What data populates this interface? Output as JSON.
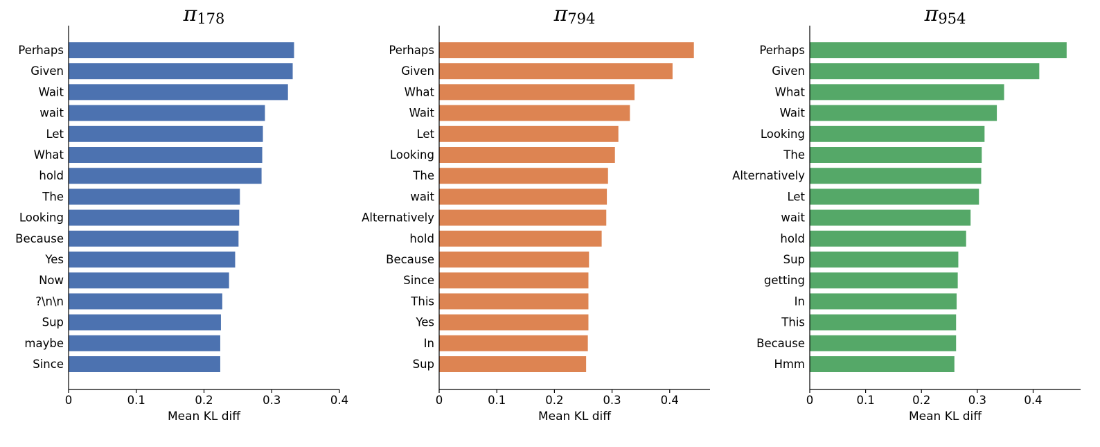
{
  "chart_data": [
    {
      "type": "bar",
      "orientation": "horizontal",
      "title": "π178",
      "title_symbol": "π",
      "title_subscript": "178",
      "xlabel": "Mean KL diff",
      "xlim": [
        0,
        0.4
      ],
      "xticks": [
        "0",
        "0.1",
        "0.2",
        "0.3",
        "0.4"
      ],
      "xtick_values": [
        0,
        0.1,
        0.2,
        0.3,
        0.4
      ],
      "color": "#4c72b0",
      "grid": false,
      "categories": [
        "Perhaps",
        "Given",
        "Wait",
        "wait",
        "Let",
        "What",
        "hold",
        "The",
        "Looking",
        "Because",
        "Yes",
        "Now",
        "?\\n\\n",
        "Sup",
        "maybe",
        "Since"
      ],
      "values": [
        0.333,
        0.331,
        0.324,
        0.29,
        0.287,
        0.286,
        0.285,
        0.253,
        0.252,
        0.251,
        0.246,
        0.237,
        0.227,
        0.225,
        0.224,
        0.224
      ]
    },
    {
      "type": "bar",
      "orientation": "horizontal",
      "title": "π794",
      "title_symbol": "π",
      "title_subscript": "794",
      "xlabel": "Mean KL diff",
      "xlim": [
        0,
        0.47
      ],
      "xticks": [
        "0",
        "0.1",
        "0.2",
        "0.3",
        "0.4"
      ],
      "xtick_values": [
        0,
        0.1,
        0.2,
        0.3,
        0.4
      ],
      "color": "#dd8452",
      "grid": false,
      "categories": [
        "Perhaps",
        "Given",
        "What",
        "Wait",
        "Let",
        "Looking",
        "The",
        "wait",
        "Alternatively",
        "hold",
        "Because",
        "Since",
        "This",
        "Yes",
        "In",
        "Sup"
      ],
      "values": [
        0.442,
        0.405,
        0.339,
        0.331,
        0.311,
        0.305,
        0.293,
        0.291,
        0.29,
        0.282,
        0.26,
        0.259,
        0.259,
        0.259,
        0.258,
        0.255
      ]
    },
    {
      "type": "bar",
      "orientation": "horizontal",
      "title": "π954",
      "title_symbol": "π",
      "title_subscript": "954",
      "xlabel": "Mean KL diff",
      "xlim": [
        0,
        0.485
      ],
      "xticks": [
        "0",
        "0.1",
        "0.2",
        "0.3",
        "0.4"
      ],
      "xtick_values": [
        0,
        0.1,
        0.2,
        0.3,
        0.4
      ],
      "color": "#55a868",
      "grid": false,
      "categories": [
        "Perhaps",
        "Given",
        "What",
        "Wait",
        "Looking",
        "The",
        "Alternatively",
        "Let",
        "wait",
        "hold",
        "Sup",
        "getting",
        "In",
        "This",
        "Because",
        "Hmm"
      ],
      "values": [
        0.46,
        0.411,
        0.348,
        0.335,
        0.313,
        0.308,
        0.307,
        0.303,
        0.288,
        0.28,
        0.266,
        0.265,
        0.263,
        0.262,
        0.262,
        0.259
      ]
    }
  ]
}
